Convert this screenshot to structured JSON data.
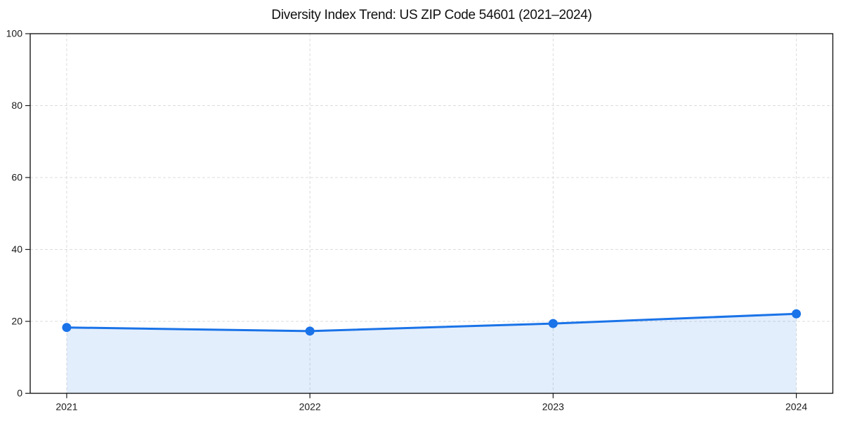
{
  "chart_data": {
    "type": "line",
    "title": "Diversity Index Trend: US ZIP Code 54601 (2021–2024)",
    "x": [
      2021,
      2022,
      2023,
      2024
    ],
    "values": [
      18.3,
      17.3,
      19.4,
      22.1
    ],
    "xticks": [
      2021,
      2022,
      2023,
      2024
    ],
    "yticks": [
      0,
      20,
      40,
      60,
      80,
      100
    ],
    "xlim": [
      2020.85,
      2024.15
    ],
    "ylim": [
      0,
      100
    ],
    "xlabel": "",
    "ylabel": "",
    "grid": "on",
    "grid_style": "dashed",
    "legend": "none",
    "marker": "circle",
    "area_fill_to_zero": true,
    "colors": {
      "line": "#1a73e8",
      "marker": "#1a73e8",
      "area": "rgba(26,115,232,0.12)",
      "grid": "#dcdcdc",
      "axis": "#1a1a1a",
      "tick_text": "#1a1a1a",
      "background": "#ffffff"
    }
  }
}
